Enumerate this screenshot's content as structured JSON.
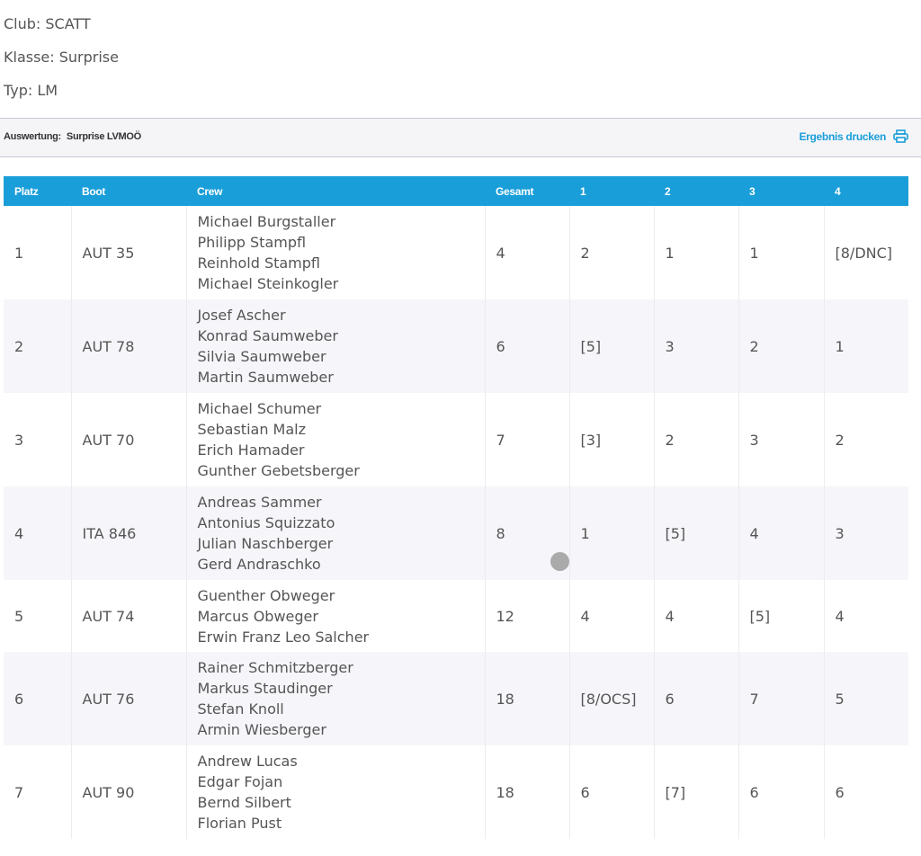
{
  "info": {
    "club": "Club: SCATT",
    "klasse": "Klasse: Surprise",
    "typ": "Typ: LM"
  },
  "evaluation": {
    "label": "Auswertung:",
    "value": "Surprise LVMOÖ",
    "print_label": "Ergebnis drucken",
    "print_icon": "printer-icon",
    "accent_color": "#1a9ed9"
  },
  "table": {
    "headers": [
      "Platz",
      "Boot",
      "Crew",
      "Gesamt",
      "1",
      "2",
      "3",
      "4"
    ],
    "rows": [
      {
        "platz": "1",
        "boot": "AUT 35",
        "crew": [
          "Michael Burgstaller",
          "Philipp Stampfl",
          "Reinhold Stampfl",
          "Michael Steinkogler"
        ],
        "gesamt": "4",
        "r1": "2",
        "r2": "1",
        "r3": "1",
        "r4": "[8/DNC]"
      },
      {
        "platz": "2",
        "boot": "AUT 78",
        "crew": [
          "Josef Ascher",
          "Konrad Saumweber",
          "Silvia Saumweber",
          "Martin Saumweber"
        ],
        "gesamt": "6",
        "r1": "[5]",
        "r2": "3",
        "r3": "2",
        "r4": "1"
      },
      {
        "platz": "3",
        "boot": "AUT 70",
        "crew": [
          "Michael Schumer",
          "Sebastian Malz",
          "Erich Hamader",
          "Gunther Gebetsberger"
        ],
        "gesamt": "7",
        "r1": "[3]",
        "r2": "2",
        "r3": "3",
        "r4": "2"
      },
      {
        "platz": "4",
        "boot": "ITA 846",
        "crew": [
          "Andreas Sammer",
          "Antonius Squizzato",
          "Julian Naschberger",
          "Gerd Andraschko"
        ],
        "gesamt": "8",
        "r1": "1",
        "r2": "[5]",
        "r3": "4",
        "r4": "3"
      },
      {
        "platz": "5",
        "boot": "AUT 74",
        "crew": [
          "Guenther Obweger",
          "Marcus Obweger",
          "Erwin Franz Leo Salcher"
        ],
        "gesamt": "12",
        "r1": "4",
        "r2": "4",
        "r3": "[5]",
        "r4": "4"
      },
      {
        "platz": "6",
        "boot": "AUT 76",
        "crew": [
          "Rainer Schmitzberger",
          "Markus Staudinger",
          "Stefan Knoll",
          "Armin Wiesberger"
        ],
        "gesamt": "18",
        "r1": "[8/OCS]",
        "r2": "6",
        "r3": "7",
        "r4": "5"
      },
      {
        "platz": "7",
        "boot": "AUT 90",
        "crew": [
          "Andrew Lucas",
          "Edgar Fojan",
          "Bernd Silbert",
          "Florian Pust"
        ],
        "gesamt": "18",
        "r1": "6",
        "r2": "[7]",
        "r3": "6",
        "r4": "6"
      }
    ]
  }
}
